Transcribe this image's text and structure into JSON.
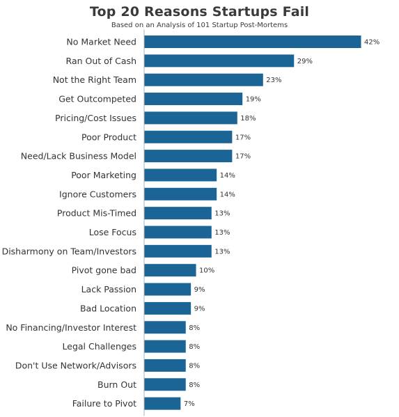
{
  "chart_data": {
    "type": "bar",
    "orientation": "horizontal",
    "title": "Top 20 Reasons Startups Fail",
    "subtitle": "Based on an Analysis of 101 Startup Post-Mortems",
    "categories": [
      "No Market Need",
      "Ran Out of Cash",
      "Not the Right Team",
      "Get Outcompeted",
      "Pricing/Cost Issues",
      "Poor Product",
      "Need/Lack Business Model",
      "Poor Marketing",
      "Ignore Customers",
      "Product Mis-Timed",
      "Lose Focus",
      "Disharmony on Team/Investors",
      "Pivot gone bad",
      "Lack Passion",
      "Bad Location",
      "No Financing/Investor Interest",
      "Legal Challenges",
      "Don't Use Network/Advisors",
      "Burn Out",
      "Failure to Pivot"
    ],
    "values": [
      42,
      29,
      23,
      19,
      18,
      17,
      17,
      14,
      14,
      13,
      13,
      13,
      10,
      9,
      9,
      8,
      8,
      8,
      8,
      7
    ],
    "value_labels": [
      "42%",
      "29%",
      "23%",
      "19%",
      "18%",
      "17%",
      "17%",
      "14%",
      "14%",
      "13%",
      "13%",
      "13%",
      "10%",
      "9%",
      "9%",
      "8%",
      "8%",
      "8%",
      "8%",
      "7%"
    ],
    "xlim": [
      0,
      42
    ],
    "grid": false,
    "bar_color": "#1a6496",
    "text_color": "#333333"
  }
}
